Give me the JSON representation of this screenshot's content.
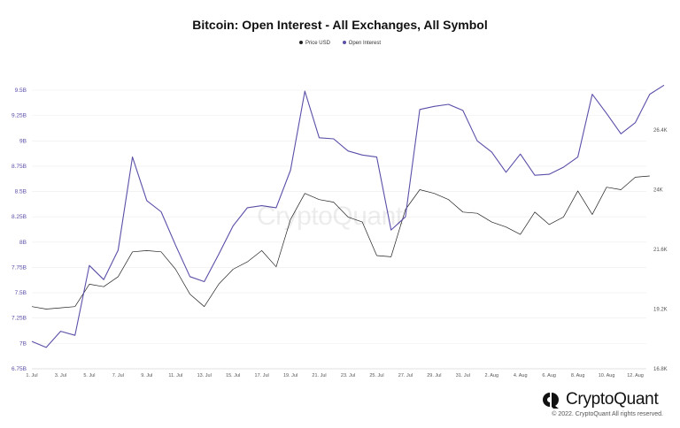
{
  "chart_data": {
    "type": "line",
    "title": "Bitcoin: Open Interest - All Exchanges, All Symbol",
    "legend_position": "top-center",
    "grid": "horizontal",
    "xlabel": "",
    "ylabel": "",
    "x_ticks": [
      "1. Jul",
      "3. Jul",
      "5. Jul",
      "7. Jul",
      "9. Jul",
      "11. Jul",
      "13. Jul",
      "15. Jul",
      "17. Jul",
      "19. Jul",
      "21. Jul",
      "23. Jul",
      "25. Jul",
      "27. Jul",
      "29. Jul",
      "31. Jul",
      "2. Aug",
      "4. Aug",
      "6. Aug",
      "8. Aug",
      "10. Aug",
      "12. Aug"
    ],
    "y_left": {
      "ticks": [
        "6.75B",
        "7B",
        "7.25B",
        "7.5B",
        "7.75B",
        "8B",
        "8.25B",
        "8.5B",
        "8.75B",
        "9B",
        "9.25B",
        "9.5B"
      ],
      "ylim": [
        6.75,
        9.5
      ]
    },
    "y_right": {
      "ticks": [
        "16.8K",
        "19.2K",
        "21.6K",
        "24K",
        "26.4K"
      ],
      "ylim": [
        16.8,
        26.4
      ]
    },
    "series": [
      {
        "name": "Price USD",
        "color": "#222222",
        "axis": "right",
        "values": [
          19.3,
          19.2,
          19.25,
          19.3,
          20.2,
          20.1,
          20.5,
          21.5,
          21.55,
          21.5,
          20.8,
          19.8,
          19.3,
          20.2,
          20.8,
          21.1,
          21.55,
          20.9,
          22.8,
          23.85,
          23.6,
          23.5,
          22.9,
          22.7,
          21.35,
          21.3,
          23.2,
          24.0,
          23.85,
          23.6,
          23.1,
          23.05,
          22.7,
          22.5,
          22.2,
          23.1,
          22.6,
          22.9,
          23.95,
          23.0,
          24.1,
          24.0,
          24.5,
          24.55
        ],
        "start_day": 0,
        "end_day": 43
      },
      {
        "name": "Open Interest",
        "color": "#5a4fa8",
        "axis": "left",
        "values": [
          7.02,
          6.96,
          7.12,
          7.08,
          7.77,
          7.63,
          7.92,
          8.84,
          8.41,
          8.3,
          7.97,
          7.66,
          7.61,
          7.88,
          8.16,
          8.34,
          8.36,
          8.34,
          8.71,
          9.49,
          9.03,
          9.02,
          8.9,
          8.86,
          8.84,
          8.12,
          8.25,
          9.31,
          9.34,
          9.36,
          9.3,
          9.0,
          8.89,
          8.69,
          8.87,
          8.66,
          8.67,
          8.74,
          8.84,
          9.46,
          9.27,
          9.07,
          9.18,
          9.46,
          9.55
        ],
        "start_day": 0,
        "end_day": 44
      }
    ]
  },
  "watermark": "CryptoQuant",
  "brand": {
    "name": "CryptoQuant",
    "icon": "cryptoquant-logo-icon",
    "copyright": "© 2022. CryptoQuant All rights reserved."
  }
}
